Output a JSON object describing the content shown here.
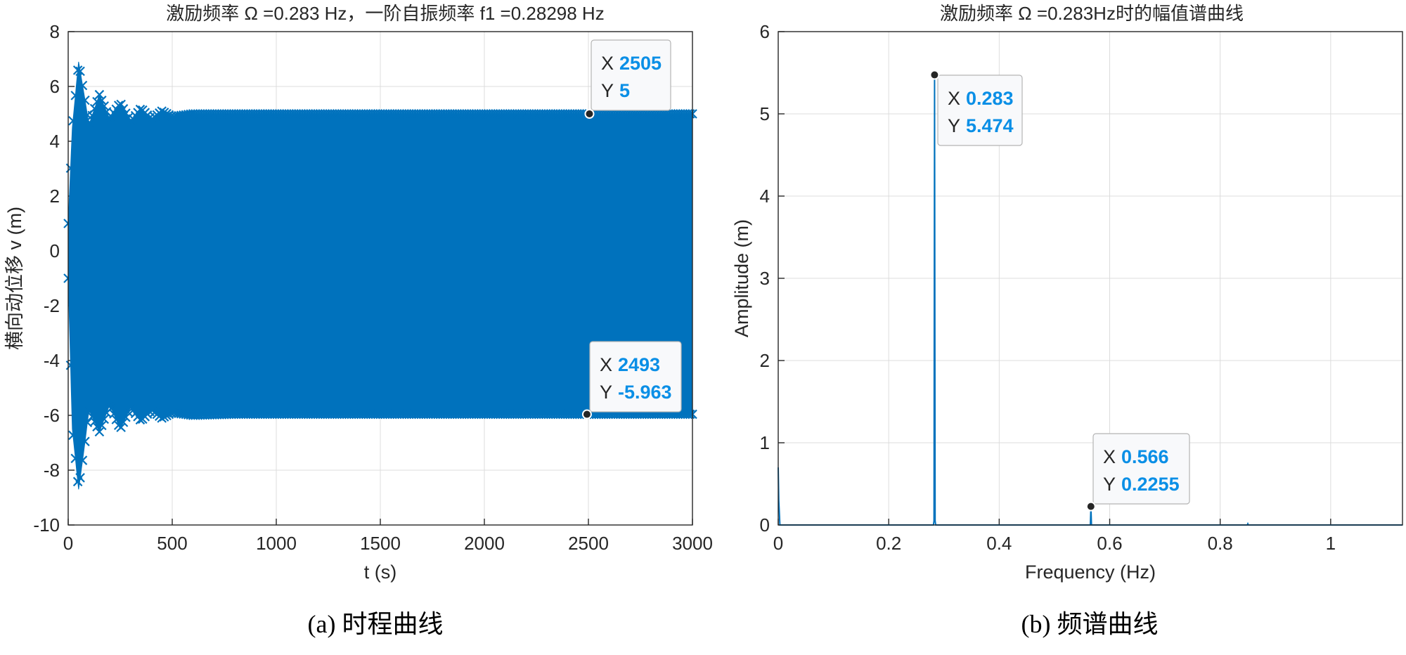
{
  "captions": {
    "left": "(a) 时程曲线",
    "right": "(b) 频谱曲线"
  },
  "colors": {
    "series": "#0072BD",
    "datatip_value": "#0a8fe6",
    "grid": "#dcdcdc",
    "axis": "#262626"
  },
  "chart_data": [
    {
      "type": "line",
      "marker": "x",
      "title": "激励频率 Ω =0.283 Hz，一阶自振频率 f1 =0.28298 Hz",
      "xlabel": "t (s)",
      "ylabel": "横向动位移 v (m)",
      "xlim": [
        0,
        3000
      ],
      "ylim": [
        -10,
        8
      ],
      "xticks": [
        0,
        500,
        1000,
        1500,
        2000,
        2500,
        3000
      ],
      "yticks": [
        8,
        6,
        4,
        2,
        0,
        -2,
        -4,
        -6,
        -8,
        -10
      ],
      "grid": true,
      "envelope": {
        "t": [
          0,
          20,
          50,
          70,
          100,
          150,
          200,
          250,
          300,
          350,
          400,
          450,
          500,
          600,
          800,
          1000,
          1500,
          2000,
          2500,
          3000
        ],
        "upper": [
          1.0,
          4.5,
          6.9,
          6.0,
          4.6,
          5.7,
          4.8,
          5.4,
          4.7,
          5.2,
          4.8,
          5.1,
          4.9,
          5.0,
          5.0,
          5.0,
          5.0,
          5.0,
          5.0,
          5.0
        ],
        "lower": [
          -1.0,
          -6.5,
          -8.7,
          -7.6,
          -5.8,
          -6.6,
          -5.6,
          -6.5,
          -5.7,
          -6.2,
          -5.8,
          -6.1,
          -5.9,
          -6.0,
          -5.96,
          -5.96,
          -5.96,
          -5.96,
          -5.963,
          -5.96
        ]
      },
      "datatips": [
        {
          "x_label": "X",
          "x_value": "2505",
          "y_label": "Y",
          "y_value": "5",
          "x": 2505,
          "y": 5
        },
        {
          "x_label": "X",
          "x_value": "2493",
          "y_label": "Y",
          "y_value": "-5.963",
          "x": 2493,
          "y": -5.963
        }
      ]
    },
    {
      "type": "line",
      "title": "激励频率 Ω =0.283Hz时的幅值谱曲线",
      "xlabel": "Frequency (Hz)",
      "ylabel": "Amplitude (m)",
      "xlim": [
        0,
        1.13
      ],
      "ylim": [
        0,
        6
      ],
      "xticks": [
        0,
        0.2,
        0.4,
        0.6,
        0.8,
        1
      ],
      "yticks": [
        6,
        5,
        4,
        3,
        2,
        1,
        0
      ],
      "grid": true,
      "x": [
        0,
        0.001,
        0.003,
        0.281,
        0.282,
        0.283,
        0.284,
        0.285,
        0.565,
        0.566,
        0.567,
        0.849,
        0.85,
        0.851,
        1.13
      ],
      "y": [
        0.7,
        0.3,
        0.0,
        0.0,
        0.05,
        5.474,
        0.05,
        0.0,
        0.0,
        0.2255,
        0.0,
        0.0,
        0.015,
        0.0,
        0.0
      ],
      "datatips": [
        {
          "x_label": "X",
          "x_value": "0.283",
          "y_label": "Y",
          "y_value": "5.474",
          "x": 0.283,
          "y": 5.474
        },
        {
          "x_label": "X",
          "x_value": "0.566",
          "y_label": "Y",
          "y_value": "0.2255",
          "x": 0.566,
          "y": 0.2255
        }
      ]
    }
  ]
}
